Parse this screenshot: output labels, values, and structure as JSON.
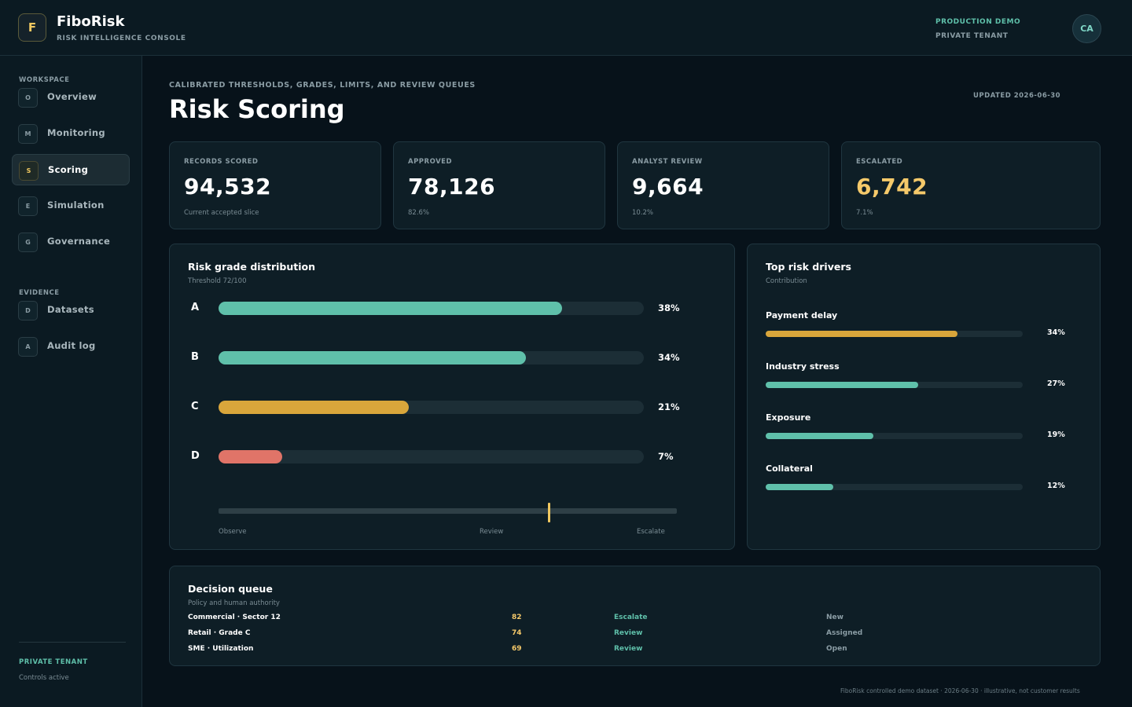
{
  "header": {
    "logo_letter": "F",
    "brand_name": "FiboRisk",
    "brand_subtitle": "RISK INTELLIGENCE CONSOLE",
    "environment": "PRODUCTION DEMO",
    "tenant": "PRIVATE TENANT",
    "avatar_initials": "CA"
  },
  "sidebar": {
    "workspace_label": "WORKSPACE",
    "workspace_items": [
      {
        "badge": "O",
        "label": "Overview",
        "active": false
      },
      {
        "badge": "M",
        "label": "Monitoring",
        "active": false
      },
      {
        "badge": "S",
        "label": "Scoring",
        "active": true
      },
      {
        "badge": "E",
        "label": "Simulation",
        "active": false
      },
      {
        "badge": "G",
        "label": "Governance",
        "active": false
      }
    ],
    "evidence_label": "EVIDENCE",
    "evidence_items": [
      {
        "badge": "D",
        "label": "Datasets",
        "active": false
      },
      {
        "badge": "A",
        "label": "Audit log",
        "active": false
      }
    ],
    "tenant_label": "PRIVATE TENANT",
    "controls_text": "Controls active"
  },
  "page": {
    "eyebrow": "CALIBRATED THRESHOLDS, GRADES, LIMITS, AND REVIEW QUEUES",
    "title": "Risk Scoring",
    "updated": "UPDATED 2026-06-30"
  },
  "kpis": [
    {
      "label": "RECORDS SCORED",
      "value": "94,532",
      "note": "Current accepted slice",
      "highlight": false
    },
    {
      "label": "APPROVED",
      "value": "78,126",
      "note": "82.6%",
      "highlight": false
    },
    {
      "label": "ANALYST REVIEW",
      "value": "9,664",
      "note": "10.2%",
      "highlight": false
    },
    {
      "label": "ESCALATED",
      "value": "6,742",
      "note": "7.1%",
      "highlight": true
    }
  ],
  "grade_panel": {
    "title": "Risk grade distribution",
    "subtitle": "Threshold 72/100",
    "threshold_value": 72,
    "threshold_max": 100,
    "threshold_labels": [
      "Observe",
      "Review",
      "Escalate"
    ]
  },
  "drivers_panel": {
    "title": "Top risk drivers",
    "subtitle": "Contribution"
  },
  "chart_data": [
    {
      "type": "bar",
      "categories": [
        "A",
        "B",
        "C",
        "D"
      ],
      "values": [
        38,
        34,
        21,
        7
      ],
      "value_labels": [
        "38%",
        "34%",
        "21%",
        "7%"
      ],
      "colors": [
        "#5fc0aa",
        "#5fc0aa",
        "#d9a63b",
        "#e07468"
      ],
      "title": "Risk grade distribution",
      "xlabel": "",
      "ylabel": "",
      "orientation": "horizontal"
    },
    {
      "type": "bar",
      "categories": [
        "Payment delay",
        "Industry stress",
        "Exposure",
        "Collateral"
      ],
      "values": [
        34,
        27,
        19,
        12
      ],
      "value_labels": [
        "34%",
        "27%",
        "19%",
        "12%"
      ],
      "colors": [
        "#d9a63b",
        "#5fc0aa",
        "#5fc0aa",
        "#5fc0aa"
      ],
      "title": "Top risk drivers",
      "xlabel": "",
      "ylabel": "",
      "orientation": "horizontal"
    }
  ],
  "queue": {
    "title": "Decision queue",
    "subtitle": "Policy and human authority",
    "rows": [
      {
        "name": "Commercial · Sector 12",
        "score": "82",
        "action": "Escalate",
        "status": "New"
      },
      {
        "name": "Retail · Grade C",
        "score": "74",
        "action": "Review",
        "status": "Assigned"
      },
      {
        "name": "SME · Utilization",
        "score": "69",
        "action": "Review",
        "status": "Open"
      }
    ]
  },
  "footer": "FiboRisk controlled demo dataset · 2026-06-30 · illustrative, not customer results",
  "colors": {
    "accent_teal": "#5fc0aa",
    "accent_amber": "#d9a63b",
    "accent_red": "#e07468",
    "background": "#07121a"
  }
}
